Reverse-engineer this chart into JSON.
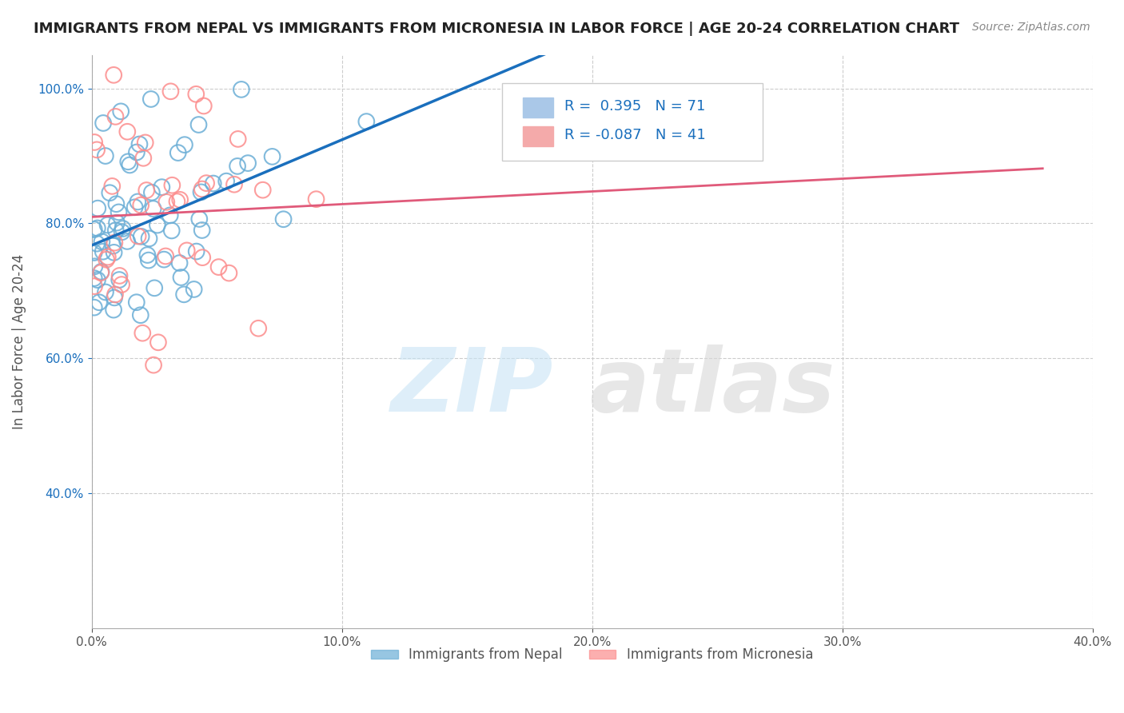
{
  "title": "IMMIGRANTS FROM NEPAL VS IMMIGRANTS FROM MICRONESIA IN LABOR FORCE | AGE 20-24 CORRELATION CHART",
  "source": "Source: ZipAtlas.com",
  "ylabel": "In Labor Force | Age 20-24",
  "x_min": 0.0,
  "x_max": 0.4,
  "y_min": 0.2,
  "y_max": 1.05,
  "x_ticks": [
    0.0,
    0.1,
    0.2,
    0.3,
    0.4
  ],
  "x_tick_labels": [
    "0.0%",
    "10.0%",
    "20.0%",
    "30.0%",
    "40.0%"
  ],
  "y_ticks": [
    0.4,
    0.6,
    0.8,
    1.0
  ],
  "y_tick_labels": [
    "40.0%",
    "60.0%",
    "80.0%",
    "100.0%"
  ],
  "nepal_color": "#6baed6",
  "micronesia_color": "#fc8d8d",
  "nepal_R": 0.395,
  "nepal_N": 71,
  "micronesia_R": -0.087,
  "micronesia_N": 41,
  "nepal_line_color": "#1a6fbd",
  "micronesia_line_color": "#e05a7a",
  "legend_label_nepal": "Immigrants from Nepal",
  "legend_label_micronesia": "Immigrants from Micronesia",
  "background_color": "#ffffff",
  "grid_color": "#cccccc",
  "text_color": "#1a1a6e",
  "axis_label_color": "#555555"
}
